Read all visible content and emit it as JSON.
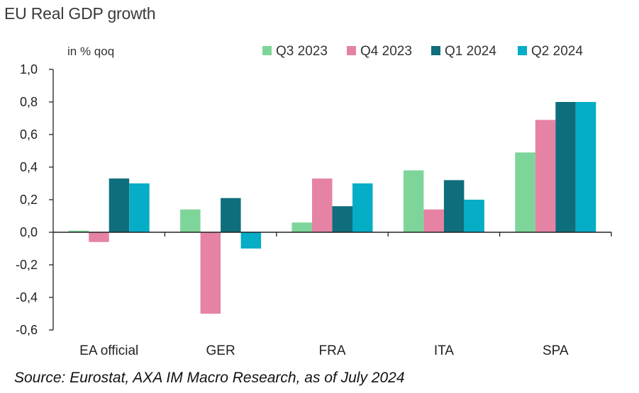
{
  "chart_data": {
    "type": "bar",
    "title": "EU Real GDP growth",
    "ylabel": "in % qoq",
    "xlabel": "",
    "categories": [
      "EA official",
      "GER",
      "FRA",
      "ITA",
      "SPA"
    ],
    "series": [
      {
        "name": "Q3 2023",
        "color": "#7ed59a",
        "values": [
          0.01,
          0.14,
          0.06,
          0.38,
          0.49
        ]
      },
      {
        "name": "Q4 2023",
        "color": "#e683a5",
        "values": [
          -0.06,
          -0.5,
          0.33,
          0.14,
          0.69
        ]
      },
      {
        "name": "Q1 2024",
        "color": "#0f6e7b",
        "values": [
          0.33,
          0.21,
          0.16,
          0.32,
          0.8
        ]
      },
      {
        "name": "Q2 2024",
        "color": "#05adc6",
        "values": [
          0.3,
          -0.1,
          0.3,
          0.2,
          0.8
        ]
      }
    ],
    "ylim": [
      -0.6,
      1.0
    ],
    "yticks": [
      "-0,6",
      "-0,4",
      "-0,2",
      "0,0",
      "0,2",
      "0,4",
      "0,6",
      "0,8",
      "1,0"
    ],
    "grid": false,
    "legend": "top-right"
  },
  "source": "Source: Eurostat, AXA IM Macro Research, as of July 2024"
}
